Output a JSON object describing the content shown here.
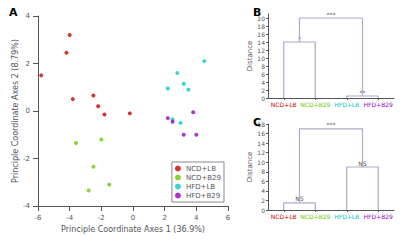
{
  "chart_data": [
    {
      "type": "scatter",
      "title": "A",
      "xlabel": "Principle Coordinate Axes 1 (36.9%)",
      "ylabel": "Principle Coordinate Axes 2 (8.79%)",
      "series": [
        {
          "name": "NCD+LB",
          "color": "#cc0000",
          "x": [
            -5.8,
            -4.2,
            -4.0,
            -3.8,
            -2.5,
            -2.2,
            -1.8,
            -0.2
          ],
          "y": [
            1.5,
            2.45,
            3.2,
            0.5,
            0.65,
            0.2,
            -0.15,
            -0.1
          ]
        },
        {
          "name": "NCD+B29",
          "color": "#66cc00",
          "x": [
            -3.6,
            -2.5,
            -2.0,
            -1.5,
            -2.8
          ],
          "y": [
            -1.35,
            -2.35,
            -1.2,
            -3.1,
            -3.35
          ]
        },
        {
          "name": "HFD+LB",
          "color": "#00cccc",
          "x": [
            2.2,
            2.8,
            3.2,
            3.5,
            4.5,
            2.5,
            3.0
          ],
          "y": [
            0.95,
            1.6,
            1.15,
            0.9,
            2.1,
            -0.35,
            -0.5
          ]
        },
        {
          "name": "HFD+B29",
          "color": "#9900cc",
          "x": [
            2.2,
            2.5,
            3.2,
            3.8,
            4.0
          ],
          "y": [
            -0.3,
            -0.45,
            -1.0,
            -0.05,
            -1.0
          ]
        }
      ],
      "xlim": [
        -6,
        6
      ],
      "xticks": [
        -6,
        -4,
        -2,
        0,
        2,
        4,
        6
      ],
      "ylim": [
        -4,
        4
      ],
      "yticks": [
        -4,
        -2,
        0,
        2,
        4
      ],
      "legend": "lower right",
      "grid": false
    },
    {
      "type": "dendrogram",
      "title": "B",
      "ylabel": "Distance",
      "categories": [
        "NCD+LB",
        "NCD+B29",
        "HFD+LB",
        "HFD+B29"
      ],
      "colors": [
        "#cc0000",
        "#66cc00",
        "#00cccc",
        "#9900cc"
      ],
      "color": "#aaaacc",
      "merges": [
        {
          "height": 14.0,
          "label": "*"
        },
        {
          "height": 0.5,
          "label": "**"
        },
        {
          "height": 20.0,
          "label": "***"
        }
      ],
      "ylim": [
        0,
        21
      ],
      "yticks": [
        0,
        2,
        4,
        6,
        8,
        10,
        12,
        14,
        16,
        18,
        20
      ],
      "grid": false
    },
    {
      "type": "dendrogram",
      "title": "C",
      "ylabel": "Distance",
      "categories": [
        "NCD+LB",
        "NCD+B29",
        "HFD+LB",
        "HFD+B29"
      ],
      "colors": [
        "#cc0000",
        "#66cc00",
        "#00cccc",
        "#9900cc"
      ],
      "color": "#aaaacc",
      "merges": [
        {
          "height": 1.5,
          "label": "NS"
        },
        {
          "height": 9.0,
          "label": "NS"
        },
        {
          "height": 17.0,
          "label": "***"
        }
      ],
      "ylim": [
        0,
        18
      ],
      "yticks": [
        0,
        2,
        4,
        6,
        8,
        10,
        12,
        14,
        16,
        18
      ],
      "grid": false
    }
  ]
}
